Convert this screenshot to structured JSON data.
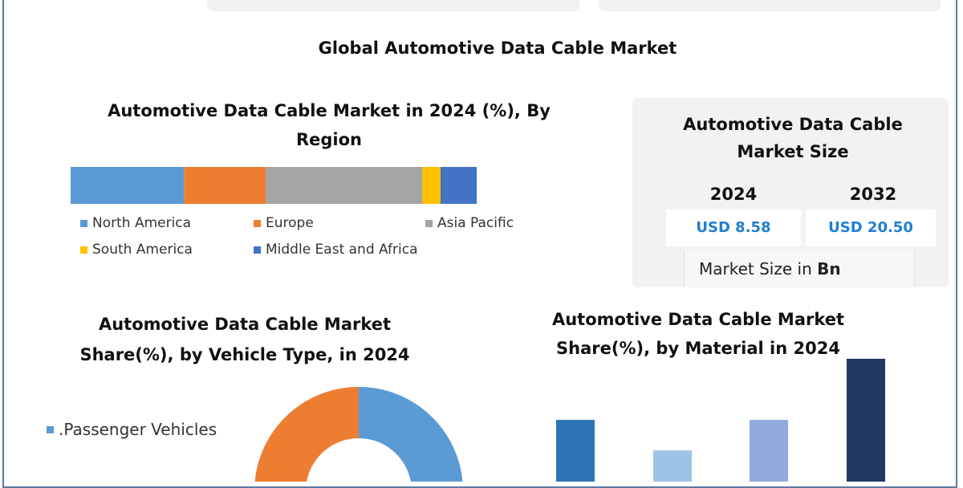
{
  "main_title": "Global Automotive Data Cable Market",
  "market_size": {
    "title": "Automotive Data Cable Market Size",
    "years": [
      "2024",
      "2032"
    ],
    "values": [
      "USD 8.58",
      "USD 20.50"
    ],
    "unit_note_prefix": "Market Size in ",
    "unit_note_bold": "Bn",
    "value_color": "#1f7fd1"
  },
  "chart_data": [
    {
      "type": "bar",
      "orientation": "horizontal-stacked",
      "title": "Automotive Data Cable Market in 2024 (%), By Region",
      "categories": [
        "North America",
        "Europe",
        "Asia Pacific",
        "South America",
        "Middle East and Africa"
      ],
      "values": [
        27.9,
        20.2,
        38.5,
        4.5,
        8.9
      ],
      "colors": [
        "#5b9bd5",
        "#ed7d31",
        "#a5a5a5",
        "#ffc000",
        "#4472c4"
      ],
      "legend": "bottom"
    },
    {
      "type": "pie",
      "variant": "donut",
      "title": "Automotive Data Cable Market Share(%), by Vehicle Type, in 2024",
      "legend_visible": [
        ".Passenger Vehicles"
      ],
      "colors": [
        "#5b9bd5",
        "#ed7d31"
      ],
      "legend": "left"
    },
    {
      "type": "bar",
      "title": "Automotive Data Cable Market Share(%), by Material in 2024",
      "values": [
        56,
        34,
        56,
        100
      ],
      "colors": [
        "#2e75b6",
        "#9dc3e6",
        "#8faadc",
        "#1f3864"
      ],
      "grid": false
    }
  ]
}
